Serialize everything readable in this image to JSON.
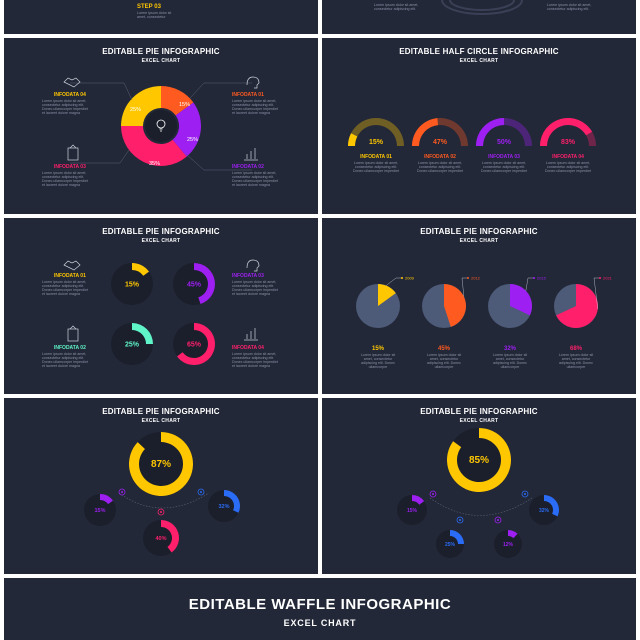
{
  "colors": {
    "bg": "#232838",
    "yellow": "#ffc700",
    "orange": "#ff5a1f",
    "purple": "#9d1ff2",
    "pink": "#ff1f6b",
    "teal": "#5ff5c8",
    "blue": "#2a6cf5",
    "grey": "#4d5a78",
    "lorem": "#8b91a6"
  },
  "lorem": {
    "line1": "Lorem ipsum dolor sit amet,",
    "line2": "consectetur adipiscing elit.",
    "line3": "Donec ullamcorper imperdiet",
    "line4": "et laoreet dolore magna"
  },
  "top_left": {
    "step_label": "STEP 03",
    "l1": "Lorem ipsum dolor sit",
    "l2": "amet, consectetur"
  },
  "top_right": {
    "l1": "Lorem ipsum dolor sit amet,",
    "l2": "consectetur adipiscing elit."
  },
  "pie1": {
    "title": "EDITABLE PIE INFOGRAPHIC",
    "subtitle": "EXCEL CHART",
    "labels": [
      "INFODATA 04",
      "INFODATA 01",
      "INFODATA 03",
      "INFODATA 02"
    ]
  },
  "half": {
    "title": "EDITABLE HALF CIRCLE INFOGRAPHIC",
    "subtitle": "EXCEL CHART",
    "labels": [
      "INFODATA 01",
      "INFODATA 02",
      "INFODATA 03",
      "INFODATA 04"
    ],
    "pcts": [
      "15%",
      "47%",
      "50%",
      "83%"
    ]
  },
  "pie3": {
    "title": "EDITABLE PIE INFOGRAPHIC",
    "subtitle": "EXCEL CHART",
    "labels": [
      "INFODATA 01",
      "INFODATA 03",
      "INFODATA 02",
      "INFODATA 04"
    ],
    "pcts": [
      "15%",
      "45%",
      "25%",
      "65%"
    ]
  },
  "pie4": {
    "title": "EDITABLE PIE INFOGRAPHIC",
    "subtitle": "EXCEL CHART",
    "years": [
      "2009",
      "2012",
      "2015",
      "2021"
    ],
    "pcts": [
      "15%",
      "45%",
      "32%",
      "68%"
    ],
    "text": [
      "Lorem ipsum dolor sit",
      "amet, consectetur",
      "adipiscing elit. Donec",
      "ullamcorper"
    ]
  },
  "pie5": {
    "title": "EDITABLE PIE INFOGRAPHIC",
    "subtitle": "EXCEL CHART",
    "pcts": [
      "87%",
      "15%",
      "32%",
      "40%"
    ]
  },
  "pie6": {
    "title": "EDITABLE PIE INFOGRAPHIC",
    "subtitle": "EXCEL CHART",
    "pcts": [
      "85%",
      "15%",
      "32%",
      "25%",
      "12%"
    ]
  },
  "waffle": {
    "title": "EDITABLE WAFFLE INFOGRAPHIC",
    "subtitle": "EXCEL CHART"
  },
  "chart_data": [
    {
      "type": "pie",
      "categories": [
        "INFODATA 01",
        "INFODATA 02",
        "INFODATA 03",
        "INFODATA 04"
      ],
      "values": [
        15,
        25,
        35,
        25
      ]
    },
    {
      "type": "pie",
      "categories": [
        "INFODATA 01",
        "INFODATA 02",
        "INFODATA 03",
        "INFODATA 04"
      ],
      "values": [
        15,
        47,
        50,
        83
      ]
    },
    {
      "type": "pie",
      "categories": [
        "INFODATA 01",
        "INFODATA 03",
        "INFODATA 02",
        "INFODATA 04"
      ],
      "values": [
        15,
        45,
        25,
        65
      ]
    },
    {
      "type": "pie",
      "categories": [
        "2009",
        "2012",
        "2015",
        "2021"
      ],
      "values": [
        15,
        45,
        32,
        68
      ]
    },
    {
      "type": "pie",
      "values": [
        87,
        15,
        32,
        40
      ]
    },
    {
      "type": "pie",
      "values": [
        85,
        15,
        32,
        25,
        12
      ]
    }
  ]
}
